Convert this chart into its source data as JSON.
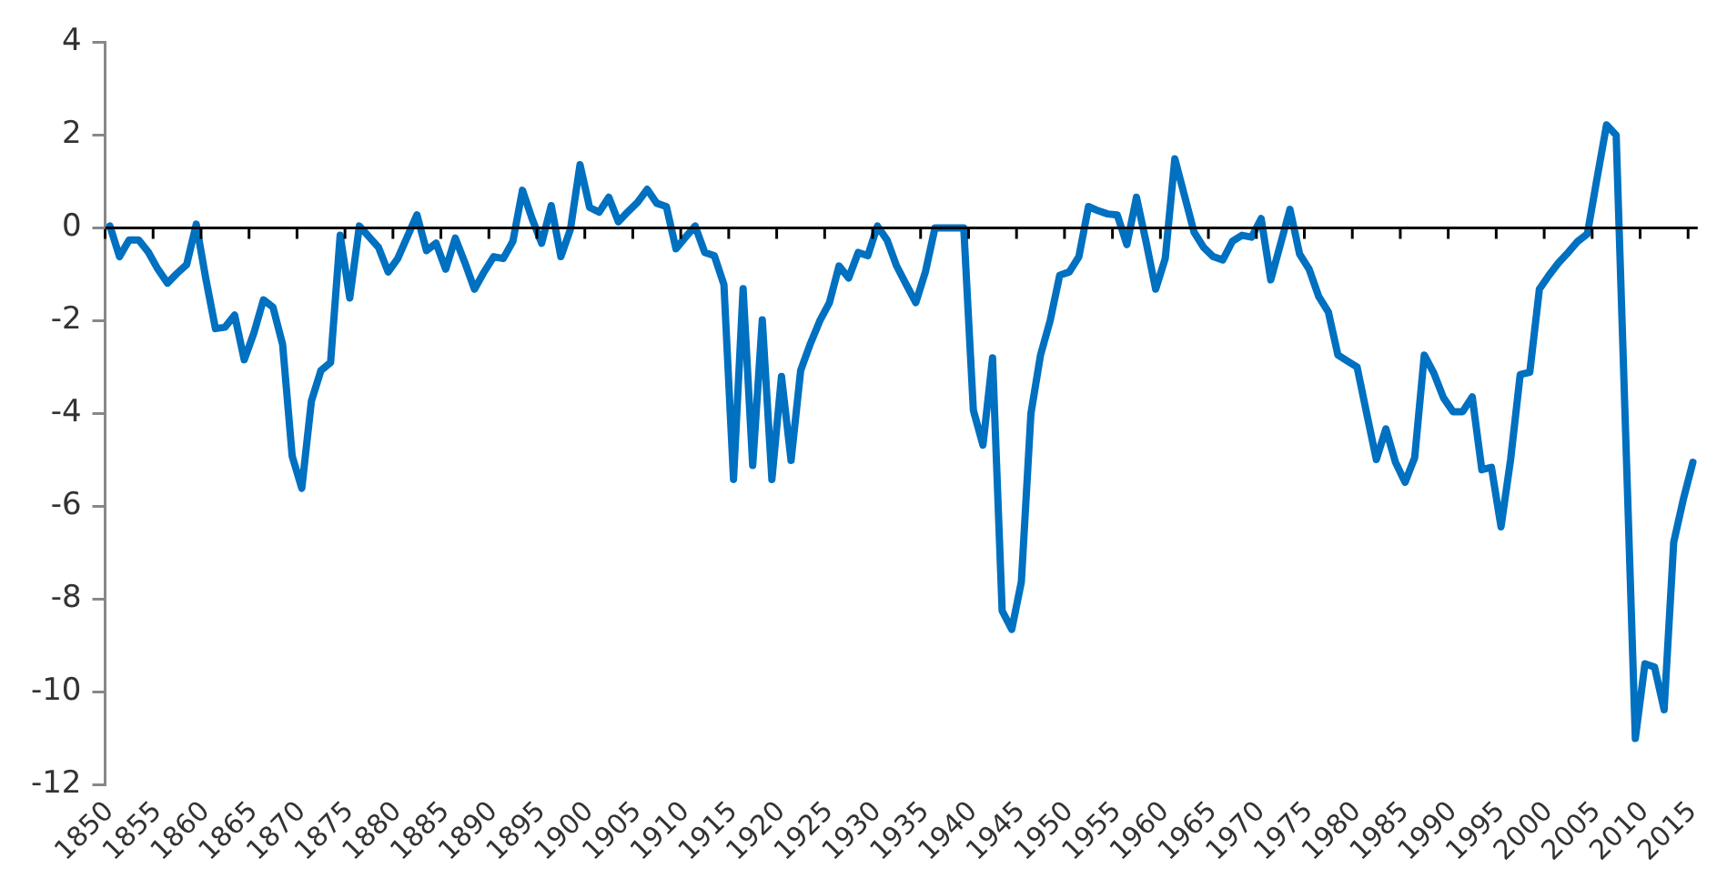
{
  "chart_data": {
    "type": "line",
    "x": [
      1850,
      1851,
      1852,
      1853,
      1854,
      1855,
      1856,
      1857,
      1858,
      1859,
      1860,
      1861,
      1862,
      1863,
      1864,
      1865,
      1866,
      1867,
      1868,
      1869,
      1870,
      1871,
      1872,
      1873,
      1874,
      1875,
      1876,
      1877,
      1878,
      1879,
      1880,
      1881,
      1882,
      1883,
      1884,
      1885,
      1886,
      1887,
      1888,
      1889,
      1890,
      1891,
      1892,
      1893,
      1894,
      1895,
      1896,
      1897,
      1898,
      1899,
      1900,
      1901,
      1902,
      1903,
      1904,
      1905,
      1906,
      1907,
      1908,
      1909,
      1910,
      1911,
      1912,
      1913,
      1914,
      1915,
      1916,
      1917,
      1918,
      1919,
      1920,
      1921,
      1922,
      1923,
      1924,
      1925,
      1926,
      1927,
      1928,
      1929,
      1930,
      1931,
      1932,
      1933,
      1934,
      1935,
      1936,
      1937,
      1938,
      1939,
      1940,
      1941,
      1942,
      1943,
      1944,
      1945,
      1946,
      1947,
      1948,
      1949,
      1950,
      1951,
      1952,
      1953,
      1954,
      1955,
      1956,
      1957,
      1958,
      1959,
      1960,
      1961,
      1962,
      1963,
      1964,
      1965,
      1966,
      1967,
      1968,
      1969,
      1970,
      1971,
      1972,
      1973,
      1974,
      1975,
      1976,
      1977,
      1978,
      1979,
      1980,
      1981,
      1982,
      1983,
      1984,
      1985,
      1986,
      1987,
      1988,
      1989,
      1990,
      1991,
      1992,
      1993,
      1994,
      1995,
      1996,
      1997,
      1998,
      1999,
      2000,
      2001,
      2002,
      2003,
      2004,
      2005,
      2006,
      2007,
      2008,
      2009,
      2010,
      2011,
      2012,
      2013,
      2014,
      2015
    ],
    "series": [
      {
        "color": "#0070c0",
        "values": [
          0.04,
          -0.62,
          -0.26,
          -0.26,
          -0.52,
          -0.89,
          -1.19,
          -0.98,
          -0.79,
          0.08,
          -1.1,
          -2.17,
          -2.14,
          -1.88,
          -2.84,
          -2.27,
          -1.55,
          -1.71,
          -2.51,
          -4.92,
          -5.61,
          -3.73,
          -3.07,
          -2.9,
          -0.16,
          -1.51,
          0.04,
          -0.19,
          -0.42,
          -0.95,
          -0.66,
          -0.19,
          0.28,
          -0.49,
          -0.33,
          -0.89,
          -0.22,
          -0.75,
          -1.32,
          -0.95,
          -0.62,
          -0.66,
          -0.29,
          0.81,
          0.2,
          -0.33,
          0.48,
          -0.62,
          -0.03,
          1.36,
          0.44,
          0.34,
          0.66,
          0.13,
          0.35,
          0.55,
          0.83,
          0.53,
          0.46,
          -0.45,
          -0.2,
          0.04,
          -0.53,
          -0.6,
          -1.22,
          -5.42,
          -1.31,
          -5.12,
          -1.98,
          -5.42,
          -3.2,
          -5.01,
          -3.07,
          -2.5,
          -2.0,
          -1.61,
          -0.82,
          -1.08,
          -0.53,
          -0.6,
          0.04,
          -0.26,
          -0.82,
          -1.22,
          -1.61,
          -0.95,
          0,
          0,
          0,
          0,
          -3.93,
          -4.68,
          -2.8,
          -8.25,
          -8.65,
          -7.63,
          -4.0,
          -2.74,
          -2.0,
          -1.02,
          -0.95,
          -0.62,
          0.46,
          0.37,
          0.3,
          0.28,
          -0.36,
          0.66,
          -0.3,
          -1.32,
          -0.66,
          1.49,
          0.7,
          -0.09,
          -0.42,
          -0.62,
          -0.69,
          -0.29,
          -0.16,
          -0.2,
          0.2,
          -1.12,
          -0.36,
          0.4,
          -0.56,
          -0.89,
          -1.48,
          -1.81,
          -2.74,
          -2.87,
          -3.0,
          -4.0,
          -4.99,
          -4.33,
          -5.05,
          -5.48,
          -4.95,
          -2.74,
          -3.13,
          -3.66,
          -3.96,
          -3.96,
          -3.64,
          -5.21,
          -5.16,
          -6.44,
          -4.99,
          -3.16,
          -3.11,
          -1.32,
          -1.02,
          -0.75,
          -0.53,
          -0.29,
          -0.13,
          1.06,
          2.22,
          2.0,
          -4.5,
          -11.0,
          -9.39,
          -9.46,
          -10.38,
          -6.77,
          -5.85,
          -5.05
        ]
      }
    ],
    "xlim": [
      1849.5,
      2015.5
    ],
    "xticks": [
      1850,
      1855,
      1860,
      1865,
      1870,
      1875,
      1880,
      1885,
      1890,
      1895,
      1900,
      1905,
      1910,
      1915,
      1920,
      1925,
      1930,
      1935,
      1940,
      1945,
      1950,
      1955,
      1960,
      1965,
      1970,
      1975,
      1980,
      1985,
      1990,
      1995,
      2000,
      2005,
      2010,
      2015
    ],
    "ylim": [
      -12,
      4
    ],
    "yticks": [
      -12,
      -10,
      -8,
      -6,
      -4,
      -2,
      0,
      2,
      4
    ],
    "ref_lines": [
      {
        "axis": "y",
        "value": 0,
        "color": "#000000",
        "line_style": "solid"
      }
    ],
    "grid": false,
    "legend": false,
    "marker": "none",
    "line_style": "solid"
  }
}
